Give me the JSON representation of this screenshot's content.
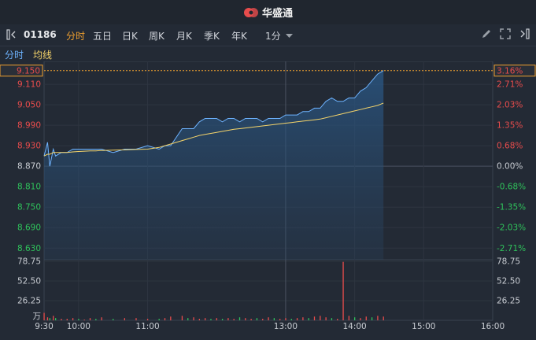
{
  "header": {
    "brand": "华盛通"
  },
  "toolbar": {
    "symbol": "01186",
    "tabs": [
      {
        "label": "分时",
        "active": true
      },
      {
        "label": "五日",
        "active": false
      },
      {
        "label": "日K",
        "active": false
      },
      {
        "label": "周K",
        "active": false
      },
      {
        "label": "月K",
        "active": false
      },
      {
        "label": "季K",
        "active": false
      },
      {
        "label": "年K",
        "active": false
      }
    ],
    "interval": "1分"
  },
  "legend": {
    "price": "分时",
    "avg": "均线"
  },
  "colors": {
    "up": "#e84c4c",
    "down": "#2fc25b",
    "price_line": "#6eb3ff",
    "avg_line": "#f5d46a",
    "accent": "#f0a030",
    "neutral": "#c8ccd2"
  },
  "price_axis": {
    "labels": [
      "9.110",
      "9.050",
      "8.990",
      "8.930",
      "8.870",
      "8.810",
      "8.750",
      "8.690",
      "8.630"
    ],
    "values": [
      9.11,
      9.05,
      8.99,
      8.93,
      8.87,
      8.81,
      8.75,
      8.69,
      8.63
    ],
    "prev_close": 8.87,
    "current": "9.150",
    "current_value": 9.15,
    "min": 8.596,
    "max": 9.154
  },
  "pct_axis": {
    "labels": [
      "2.71%",
      "2.03%",
      "1.35%",
      "0.68%",
      "0.00%",
      "-0.68%",
      "-1.35%",
      "-2.03%",
      "-2.71%"
    ],
    "current": "3.16%"
  },
  "volume_axis": {
    "labels": [
      "78.75",
      "52.50",
      "26.25"
    ],
    "values": [
      78.75,
      52.5,
      26.25
    ],
    "unit": "万",
    "max": 78.75
  },
  "time_axis": {
    "labels": [
      "9:30",
      "10:00",
      "11:00",
      "13:00",
      "14:00",
      "15:00",
      "16:00"
    ]
  },
  "chart_data": {
    "type": "line",
    "x_minutes_from_open": [
      0,
      3,
      5,
      8,
      10,
      15,
      20,
      25,
      30,
      35,
      40,
      45,
      50,
      60,
      70,
      80,
      90,
      100,
      105,
      110,
      120,
      125,
      130,
      135,
      140,
      145,
      150,
      155,
      160,
      165,
      170,
      175,
      180,
      185,
      190,
      195,
      200,
      205,
      210,
      215,
      220,
      225,
      230,
      235,
      240,
      245,
      250,
      255,
      260,
      265,
      270,
      275,
      280,
      285,
      290,
      295
    ],
    "price": [
      8.9,
      8.94,
      8.87,
      8.92,
      8.9,
      8.91,
      8.91,
      8.92,
      8.92,
      8.92,
      8.92,
      8.92,
      8.92,
      8.91,
      8.92,
      8.92,
      8.93,
      8.92,
      8.93,
      8.93,
      8.98,
      8.98,
      8.98,
      9.0,
      9.01,
      9.01,
      9.01,
      9.0,
      9.01,
      9.01,
      9.0,
      9.01,
      9.01,
      9.01,
      9.0,
      9.01,
      9.01,
      9.01,
      9.02,
      9.02,
      9.02,
      9.03,
      9.03,
      9.04,
      9.04,
      9.06,
      9.07,
      9.06,
      9.06,
      9.07,
      9.07,
      9.09,
      9.1,
      9.12,
      9.14,
      9.15
    ],
    "avg_line": [
      8.9,
      8.905,
      8.905,
      8.91,
      8.91,
      8.91,
      8.91,
      8.912,
      8.913,
      8.914,
      8.915,
      8.915,
      8.916,
      8.917,
      8.918,
      8.919,
      8.92,
      8.925,
      8.93,
      8.935,
      8.945,
      8.95,
      8.955,
      8.96,
      8.963,
      8.966,
      8.969,
      8.972,
      8.975,
      8.978,
      8.98,
      8.982,
      8.984,
      8.986,
      8.988,
      8.99,
      8.992,
      8.994,
      8.996,
      8.998,
      9.0,
      9.002,
      9.004,
      9.006,
      9.008,
      9.012,
      9.016,
      9.02,
      9.024,
      9.028,
      9.032,
      9.036,
      9.04,
      9.044,
      9.048,
      9.055
    ],
    "volume": [
      10,
      4,
      3,
      6,
      3,
      2,
      2,
      3,
      2,
      1,
      3,
      2,
      4,
      2,
      3,
      3,
      2,
      2,
      3,
      5,
      6,
      3,
      4,
      2,
      3,
      2,
      3,
      2,
      3,
      2,
      4,
      3,
      2,
      3,
      2,
      4,
      3,
      2,
      3,
      2,
      3,
      4,
      3,
      5,
      6,
      4,
      3,
      2,
      78,
      6,
      4,
      3,
      5,
      4,
      6,
      5
    ],
    "volume_up": [
      true,
      true,
      false,
      true,
      false,
      true,
      true,
      true,
      false,
      true,
      true,
      false,
      true,
      false,
      true,
      true,
      true,
      false,
      true,
      true,
      true,
      false,
      true,
      true,
      true,
      false,
      true,
      false,
      true,
      true,
      false,
      true,
      true,
      false,
      true,
      true,
      false,
      true,
      true,
      false,
      true,
      true,
      false,
      true,
      true,
      true,
      false,
      true,
      true,
      true,
      false,
      true,
      true,
      false,
      true,
      true
    ]
  }
}
